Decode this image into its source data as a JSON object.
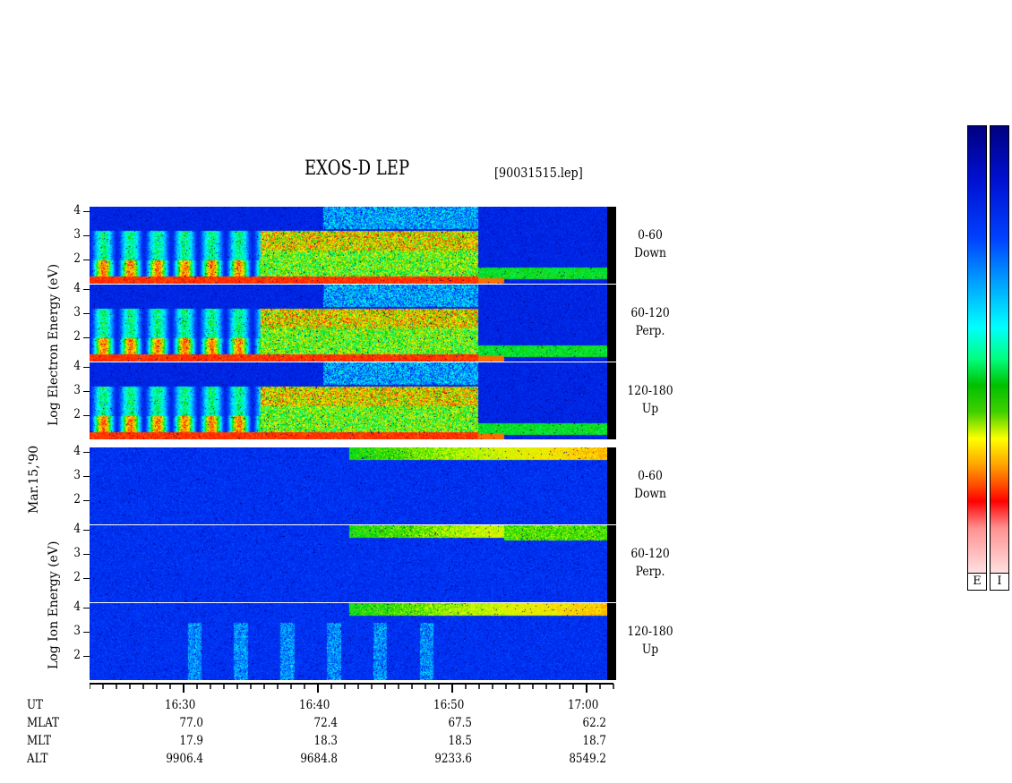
{
  "chart_data": {
    "type": "heatmap",
    "title": "EXOS-D LEP",
    "file": "[90031515.lep]",
    "date_label": "Mar.15,'90",
    "electron_ylabel": "Log  Electron  Energy  (eV)",
    "ion_ylabel": "Log  Ion  Energy  (eV)",
    "yticks": [
      "4",
      "3",
      "2"
    ],
    "ylim": [
      1,
      4.2
    ],
    "panels": [
      {
        "species": "electron",
        "pitch": "0-60",
        "dir": "Down"
      },
      {
        "species": "electron",
        "pitch": "60-120",
        "dir": "Perp."
      },
      {
        "species": "electron",
        "pitch": "120-180",
        "dir": "Up"
      },
      {
        "species": "ion",
        "pitch": "0-60",
        "dir": "Down"
      },
      {
        "species": "ion",
        "pitch": "60-120",
        "dir": "Perp."
      },
      {
        "species": "ion",
        "pitch": "120-180",
        "dir": "Up"
      }
    ],
    "x_ticks": [
      "16:30",
      "16:40",
      "16:50",
      "17:00"
    ],
    "x_range_minutes": [
      983,
      1022
    ],
    "ephemeris": [
      {
        "name": "UT",
        "values": [
          "",
          "",
          "",
          ""
        ]
      },
      {
        "name": "MLAT",
        "values": [
          "77.0",
          "72.4",
          "67.5",
          "62.2"
        ]
      },
      {
        "name": "MLT",
        "values": [
          "17.9",
          "18.3",
          "18.5",
          "18.7"
        ]
      },
      {
        "name": "ALT",
        "values": [
          "9906.4",
          "9684.8",
          "9233.6",
          "8549.2"
        ]
      }
    ],
    "colorbar_labels": [
      "E",
      "I"
    ],
    "colorscale": [
      "#000080",
      "#0010d0",
      "#0040ff",
      "#00a0ff",
      "#00ffff",
      "#00ff80",
      "#00c000",
      "#ffff00",
      "#ffa000",
      "#ff0000",
      "#ff9090",
      "#ffe0e0"
    ]
  }
}
